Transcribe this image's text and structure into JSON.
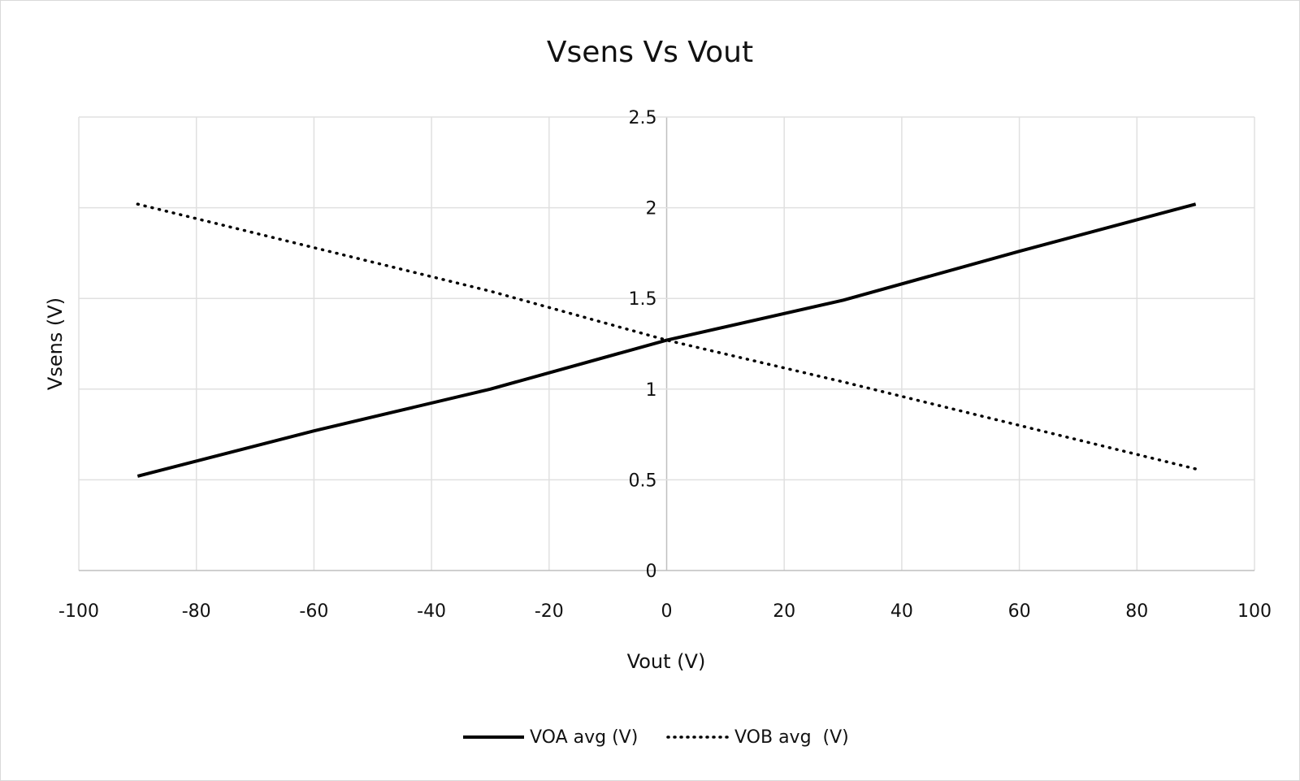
{
  "chart_data": {
    "type": "line",
    "title": "Vsens Vs Vout",
    "xlabel": "Vout (V)",
    "ylabel": "Vsens (V)",
    "xlim": [
      -100,
      100
    ],
    "ylim": [
      0,
      2.5
    ],
    "xticks": [
      -100,
      -80,
      -60,
      -40,
      -20,
      0,
      20,
      40,
      60,
      80,
      100
    ],
    "yticks": [
      0,
      0.5,
      1,
      1.5,
      2,
      2.5
    ],
    "grid": true,
    "legend": "bottom",
    "x": [
      -90,
      -60,
      -30,
      0,
      30,
      60,
      90
    ],
    "series": [
      {
        "name": "VOA avg (V)",
        "style": "solid",
        "color": "#000000",
        "values": [
          0.52,
          0.77,
          1.0,
          1.27,
          1.49,
          1.76,
          2.02
        ]
      },
      {
        "name": "VOB avg  (V)",
        "style": "dotted",
        "color": "#000000",
        "values": [
          2.02,
          1.78,
          1.54,
          1.27,
          1.04,
          0.8,
          0.56
        ]
      }
    ]
  }
}
